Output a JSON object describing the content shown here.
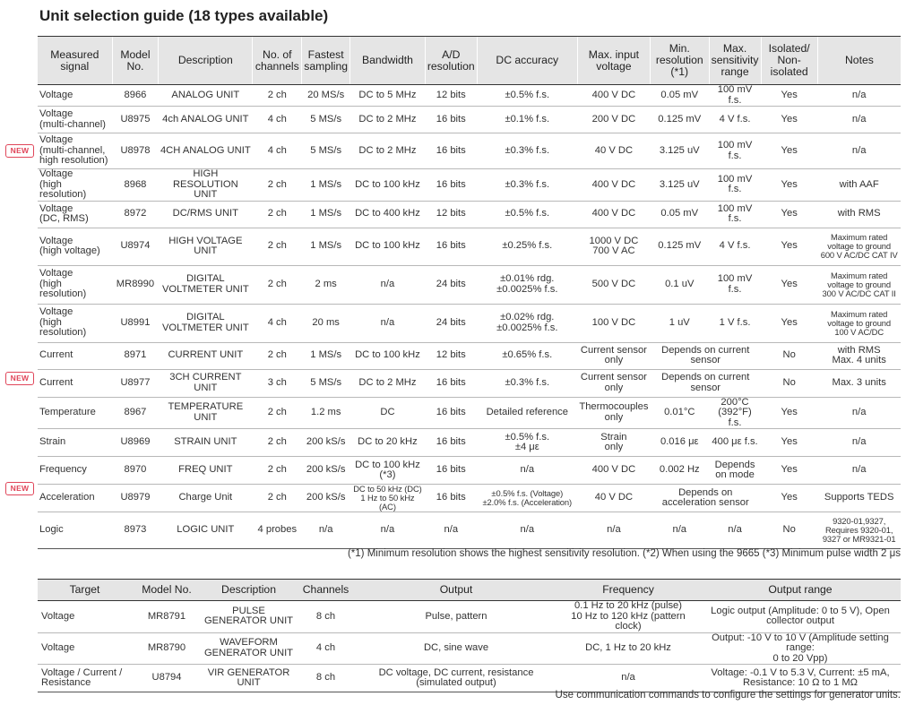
{
  "title": "Unit selection guide (18 types available)",
  "badge_label": "NEW",
  "units_table": {
    "headers": [
      "Measured\nsignal",
      "Model\nNo.",
      "Description",
      "No. of\nchannels",
      "Fastest\nsampling",
      "Bandwidth",
      "A/D\nresolution",
      "DC accuracy",
      "Max. input\nvoltage",
      "Min.\nresolution\n(*1)",
      "Max.\nsensitivity\nrange",
      "Isolated/\nNon-\nisolated",
      "Notes"
    ],
    "rows": [
      {
        "signal": "Voltage",
        "model": "8966",
        "desc": "ANALOG UNIT",
        "ch": "2 ch",
        "sampling": "20 MS/s",
        "bw": "DC to 5 MHz",
        "ad": "12 bits",
        "acc": "±0.5% f.s.",
        "maxv": "400 V DC",
        "minres": "0.05 mV",
        "sens": "100 mV f.s.",
        "iso": "Yes",
        "notes": "n/a"
      },
      {
        "signal": "Voltage\n(multi-channel)",
        "model": "U8975",
        "desc": "4ch ANALOG UNIT",
        "ch": "4 ch",
        "sampling": "5 MS/s",
        "bw": "DC to 2 MHz",
        "ad": "16 bits",
        "acc": "±0.1% f.s.",
        "maxv": "200 V DC",
        "minres": "0.125 mV",
        "sens": "4 V f.s.",
        "iso": "Yes",
        "notes": "n/a"
      },
      {
        "signal": "Voltage\n(multi-channel,\nhigh resolution)",
        "model": "U8978",
        "desc": "4CH ANALOG UNIT",
        "ch": "4 ch",
        "sampling": "5 MS/s",
        "bw": "DC to 2 MHz",
        "ad": "16 bits",
        "acc": "±0.3% f.s.",
        "maxv": "40 V DC",
        "minres": "3.125 uV",
        "sens": "100 mV f.s.",
        "iso": "Yes",
        "notes": "n/a"
      },
      {
        "signal": "Voltage\n(high resolution)",
        "model": "8968",
        "desc": "HIGH RESOLUTION\nUNIT",
        "ch": "2 ch",
        "sampling": "1 MS/s",
        "bw": "DC to 100 kHz",
        "ad": "16 bits",
        "acc": "±0.3% f.s.",
        "maxv": "400 V DC",
        "minres": "3.125 uV",
        "sens": "100 mV f.s.",
        "iso": "Yes",
        "notes": "with AAF"
      },
      {
        "signal": "Voltage\n(DC, RMS)",
        "model": "8972",
        "desc": "DC/RMS UNIT",
        "ch": "2 ch",
        "sampling": "1 MS/s",
        "bw": "DC to 400 kHz",
        "ad": "12 bits",
        "acc": "±0.5% f.s.",
        "maxv": "400 V DC",
        "minres": "0.05 mV",
        "sens": "100 mV f.s.",
        "iso": "Yes",
        "notes": "with RMS"
      },
      {
        "signal": "Voltage\n(high voltage)",
        "model": "U8974",
        "desc": "HIGH VOLTAGE\nUNIT",
        "ch": "2 ch",
        "sampling": "1 MS/s",
        "bw": "DC to 100 kHz",
        "ad": "16 bits",
        "acc": "±0.25% f.s.",
        "maxv": "1000 V DC\n700 V AC",
        "minres": "0.125 mV",
        "sens": "4 V f.s.",
        "iso": "Yes",
        "notes": "Maximum rated\nvoltage to ground\n600 V AC/DC CAT IV"
      },
      {
        "signal": "Voltage\n(high resolution)",
        "model": "MR8990",
        "desc": "DIGITAL\nVOLTMETER UNIT",
        "ch": "2 ch",
        "sampling": "2 ms",
        "bw": "n/a",
        "ad": "24 bits",
        "acc": "±0.01% rdg.\n±0.0025% f.s.",
        "maxv": "500 V DC",
        "minres": "0.1 uV",
        "sens": "100 mV f.s.",
        "iso": "Yes",
        "notes": "Maximum rated\nvoltage to ground\n300 V AC/DC CAT II"
      },
      {
        "signal": "Voltage\n(high resolution)",
        "model": "U8991",
        "desc": "DIGITAL\nVOLTMETER UNIT",
        "ch": "4 ch",
        "sampling": "20 ms",
        "bw": "n/a",
        "ad": "24 bits",
        "acc": "±0.02% rdg.\n±0.0025% f.s.",
        "maxv": "100 V DC",
        "minres": "1 uV",
        "sens": "1 V f.s.",
        "iso": "Yes",
        "notes": "Maximum rated\nvoltage to ground\n100 V AC/DC"
      },
      {
        "signal": "Current",
        "model": "8971",
        "desc": "CURRENT UNIT",
        "ch": "2 ch",
        "sampling": "1 MS/s",
        "bw": "DC to 100 kHz",
        "ad": "12 bits",
        "acc": "±0.65% f.s.",
        "maxv": "Current sensor\nonly",
        "minres": "Depends on current\nsensor",
        "sens": "",
        "iso": "No",
        "notes": "with RMS\nMax. 4 units"
      },
      {
        "signal": "Current",
        "model": "U8977",
        "desc": "3CH CURRENT\nUNIT",
        "ch": "3 ch",
        "sampling": "5 MS/s",
        "bw": "DC to 2 MHz",
        "ad": "16 bits",
        "acc": "±0.3% f.s.",
        "maxv": "Current sensor\nonly",
        "minres": "Depends on current\nsensor",
        "sens": "",
        "iso": "No",
        "notes": "Max. 3 units"
      },
      {
        "signal": "Temperature",
        "model": "8967",
        "desc": "TEMPERATURE\nUNIT",
        "ch": "2 ch",
        "sampling": "1.2 ms",
        "bw": "DC",
        "ad": "16 bits",
        "acc": "Detailed reference",
        "maxv": "Thermocouples\nonly",
        "minres": "0.01°C",
        "sens": "200°C\n(392°F) f.s.",
        "iso": "Yes",
        "notes": "n/a"
      },
      {
        "signal": "Strain",
        "model": "U8969",
        "desc": "STRAIN UNIT",
        "ch": "2 ch",
        "sampling": "200 kS/s",
        "bw": "DC to 20 kHz",
        "ad": "16 bits",
        "acc": "±0.5% f.s.\n±4 με",
        "maxv": "Strain\nonly",
        "minres": "0.016 με",
        "sens": "400 με f.s.",
        "iso": "Yes",
        "notes": "n/a"
      },
      {
        "signal": "Frequency",
        "model": "8970",
        "desc": "FREQ UNIT",
        "ch": "2 ch",
        "sampling": "200 kS/s",
        "bw": "DC to 100 kHz\n(*3)",
        "ad": "16 bits",
        "acc": "n/a",
        "maxv": "400 V DC",
        "minres": "0.002 Hz",
        "sens": "Depends\non mode",
        "iso": "Yes",
        "notes": "n/a"
      },
      {
        "signal": "Acceleration",
        "model": "U8979",
        "desc": "Charge Unit",
        "ch": "2 ch",
        "sampling": "200 kS/s",
        "bw": "DC to 50 kHz (DC)\n1 Hz to 50 kHz (AC)",
        "ad": "16 bits",
        "acc": "±0.5% f.s. (Voltage)\n±2.0% f.s. (Acceleration)",
        "maxv": "40 V DC",
        "minres": "Depends on\nacceleration sensor",
        "sens": "",
        "iso": "Yes",
        "notes": "Supports TEDS"
      },
      {
        "signal": "Logic",
        "model": "8973",
        "desc": "LOGIC UNIT",
        "ch": "4 probes",
        "sampling": "n/a",
        "bw": "n/a",
        "ad": "n/a",
        "acc": "n/a",
        "maxv": "n/a",
        "minres": "n/a",
        "sens": "n/a",
        "iso": "No",
        "notes": "9320-01,9327,\nRequires 9320-01,\n9327 or MR9321-01"
      }
    ]
  },
  "footnote_units": "(*1) Minimum resolution shows the highest sensitivity resolution. (*2) When using the 9665 (*3) Minimum pulse width 2 μs",
  "gen_table": {
    "headers": [
      "Target",
      "Model No.",
      "Description",
      "Channels",
      "Output",
      "Frequency",
      "Output range"
    ],
    "rows": [
      {
        "target": "Voltage",
        "model": "MR8791",
        "desc": "PULSE\nGENERATOR UNIT",
        "ch": "8 ch",
        "output": "Pulse, pattern",
        "freq": "0.1 Hz to 20 kHz (pulse)\n10 Hz to 120 kHz (pattern clock)",
        "range": "Logic output (Amplitude: 0 to 5 V), Open\ncollector output"
      },
      {
        "target": "Voltage",
        "model": "MR8790",
        "desc": "WAVEFORM\nGENERATOR UNIT",
        "ch": "4 ch",
        "output": "DC, sine wave",
        "freq": "DC, 1 Hz to 20 kHz",
        "range": "Output: -10 V to 10 V (Amplitude setting range:\n0 to 20 Vpp)"
      },
      {
        "target": "Voltage / Current /\nResistance",
        "model": "U8794",
        "desc": "VIR GENERATOR\nUNIT",
        "ch": "8 ch",
        "output": "DC voltage, DC current, resistance\n(simulated output)",
        "freq": "n/a",
        "range": "Voltage: -0.1 V to 5.3 V, Current: ±5 mA,\nResistance: 10 Ω to 1 MΩ"
      }
    ]
  },
  "footnote_gens": "Use communication commands to configure the settings for generator units."
}
